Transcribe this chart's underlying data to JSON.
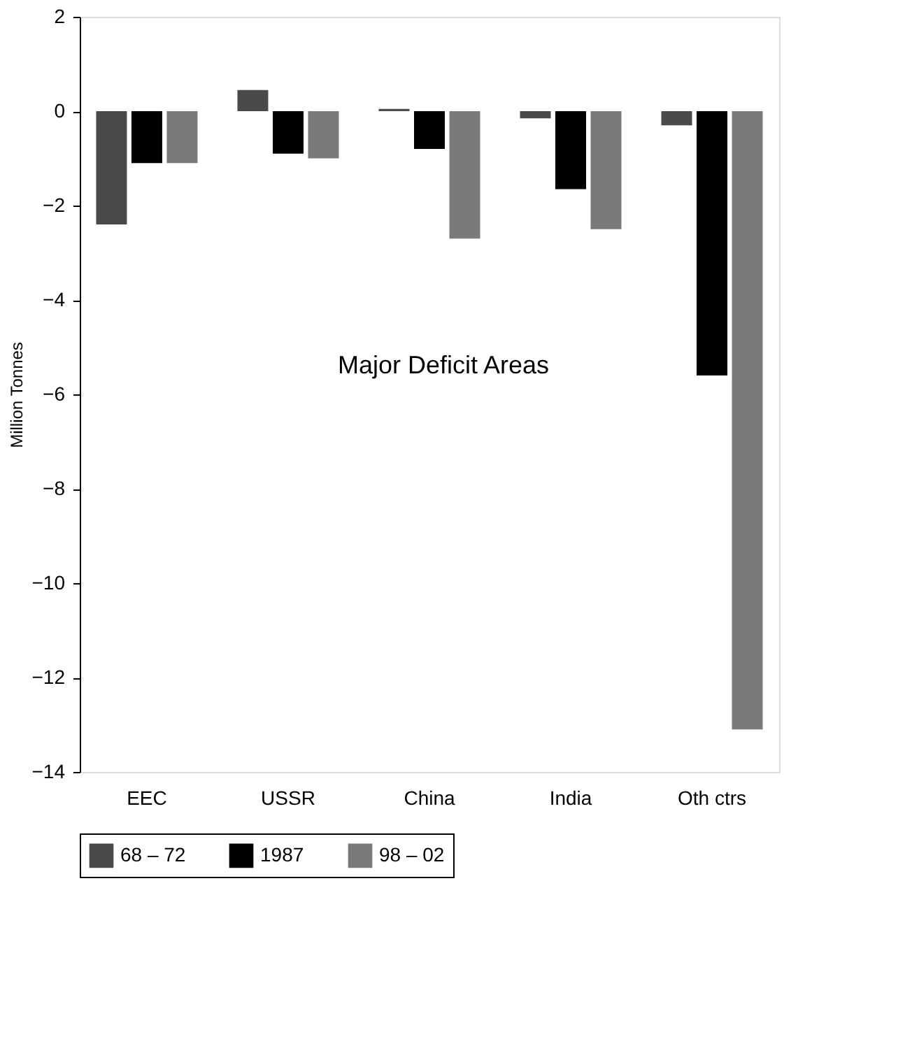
{
  "chart_data": {
    "type": "bar",
    "ylabel": "Million Tonnes",
    "annotations": [
      "Major Deficit Areas"
    ],
    "categories": [
      "EEC",
      "USSR",
      "China",
      "India",
      "Oth ctrs"
    ],
    "series": [
      {
        "name": "68 – 72",
        "color": "#4a4a4a",
        "values": [
          -2.4,
          0.45,
          0.05,
          -0.15,
          -0.3
        ]
      },
      {
        "name": "1987",
        "color": "#000000",
        "values": [
          -1.1,
          -0.9,
          -0.8,
          -1.65,
          -5.6
        ]
      },
      {
        "name": "98 – 02",
        "color": "#7a7a7a",
        "values": [
          -1.1,
          -1.0,
          -2.7,
          -2.5,
          -13.1
        ]
      }
    ],
    "ylim": [
      -14,
      2
    ],
    "yticks": [
      -14,
      -12,
      -10,
      -8,
      -6,
      -4,
      -2,
      0,
      2
    ],
    "grid": false,
    "legend": "bottom"
  }
}
